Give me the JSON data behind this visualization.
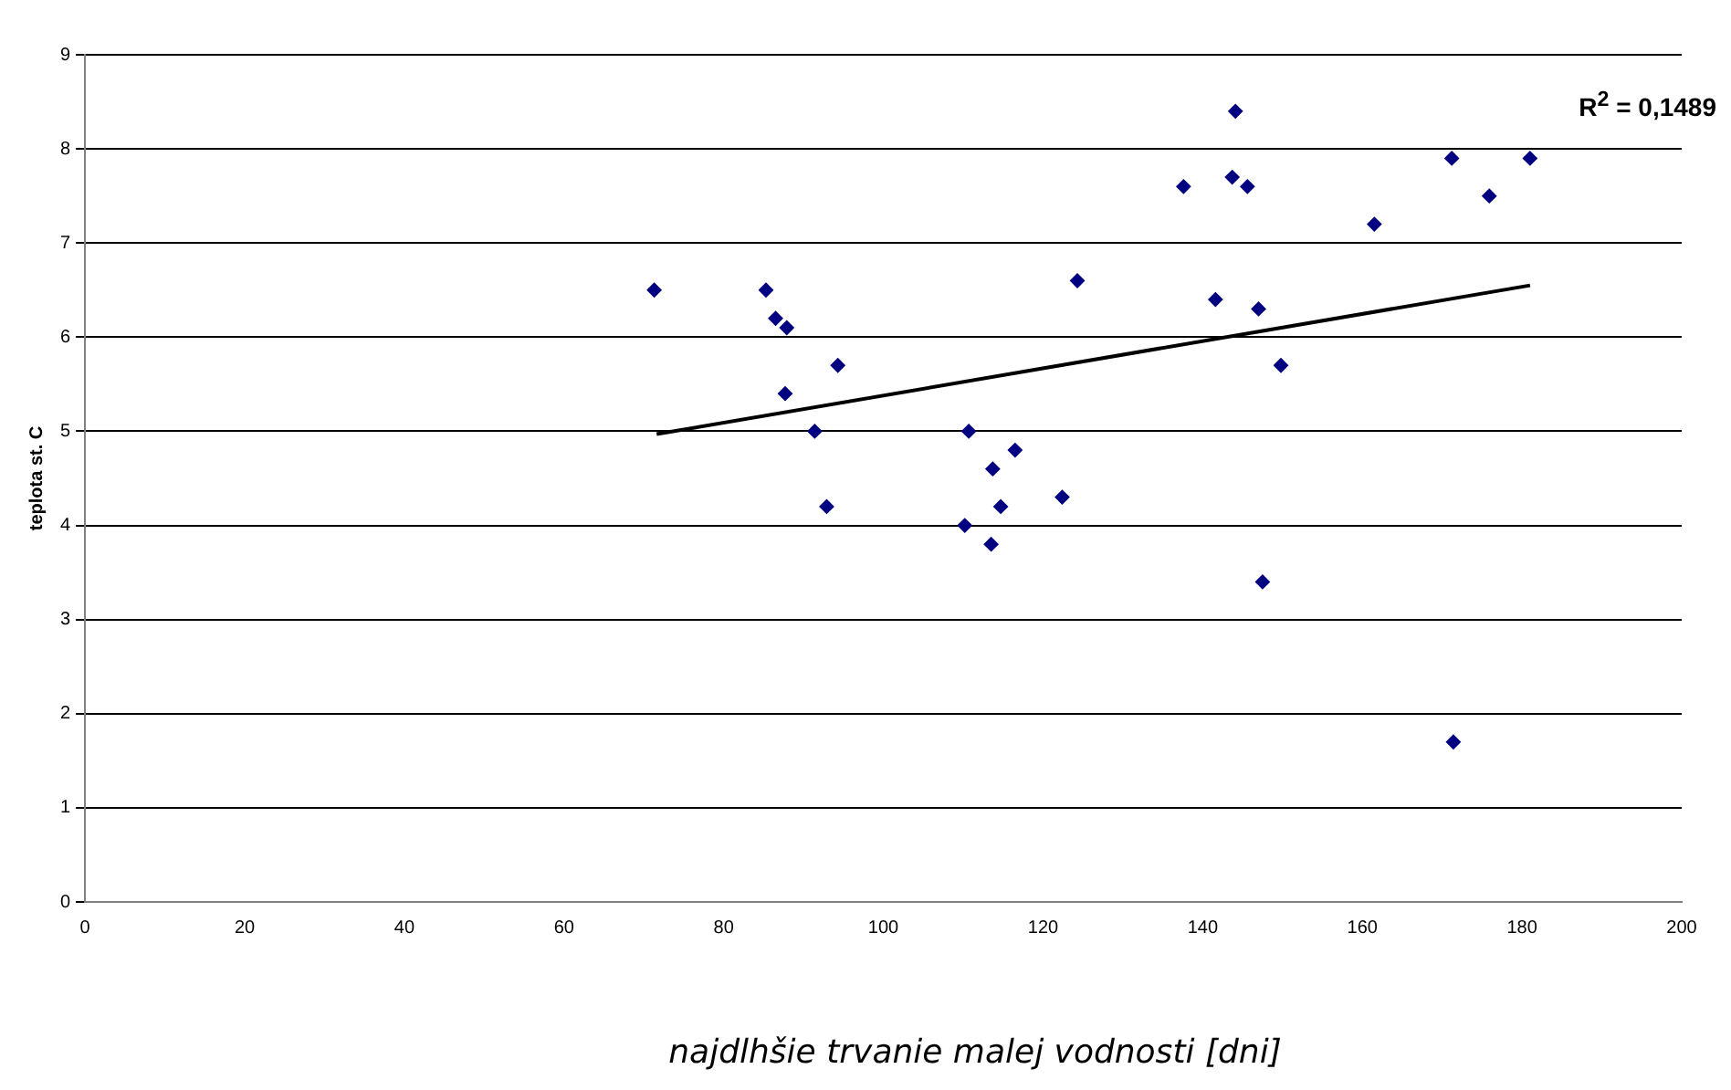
{
  "chart_data": {
    "type": "scatter",
    "xlabel": "najdlhšie trvanie malej vodnosti [dni]",
    "ylabel": "teplota st. C",
    "annotations": [
      "R$^{2}$ = 0,1489"
    ],
    "series": [
      {
        "color": "#000080",
        "marker": "diamond",
        "x": [
          71.3,
          85.3,
          86.5,
          87.9,
          87.7,
          94.3,
          91.4,
          92.9,
          110.7,
          110.2,
          113.7,
          113.5,
          114.7,
          116.5,
          122.4,
          124.3,
          137.6,
          141.6,
          143.7,
          144.1,
          145.6,
          147,
          147.5,
          149.8,
          161.5,
          171.2,
          171.4,
          175.9,
          181
        ],
        "values": [
          6.5,
          6.5,
          6.2,
          6.1,
          5.4,
          5.7,
          5.0,
          4.2,
          5.0,
          4.0,
          4.6,
          3.8,
          4.2,
          4.8,
          4.3,
          6.6,
          7.6,
          6.4,
          7.7,
          8.4,
          7.6,
          6.3,
          3.4,
          5.7,
          7.2,
          7.9,
          1.7,
          7.5,
          7.9
        ]
      },
      {
        "type": "line",
        "color": "#000000",
        "marker": "none",
        "x": [
          71.6,
          181
        ],
        "values": [
          4.97,
          6.55
        ]
      }
    ],
    "xlim": [
      0,
      200
    ],
    "xticks": [
      0,
      20,
      40,
      60,
      80,
      100,
      120,
      140,
      160,
      180,
      200
    ],
    "ylim": [
      0,
      9
    ],
    "yticks": [
      0,
      1,
      2,
      3,
      4,
      5,
      6,
      7,
      8,
      9
    ],
    "grid": "y",
    "legend": false
  }
}
